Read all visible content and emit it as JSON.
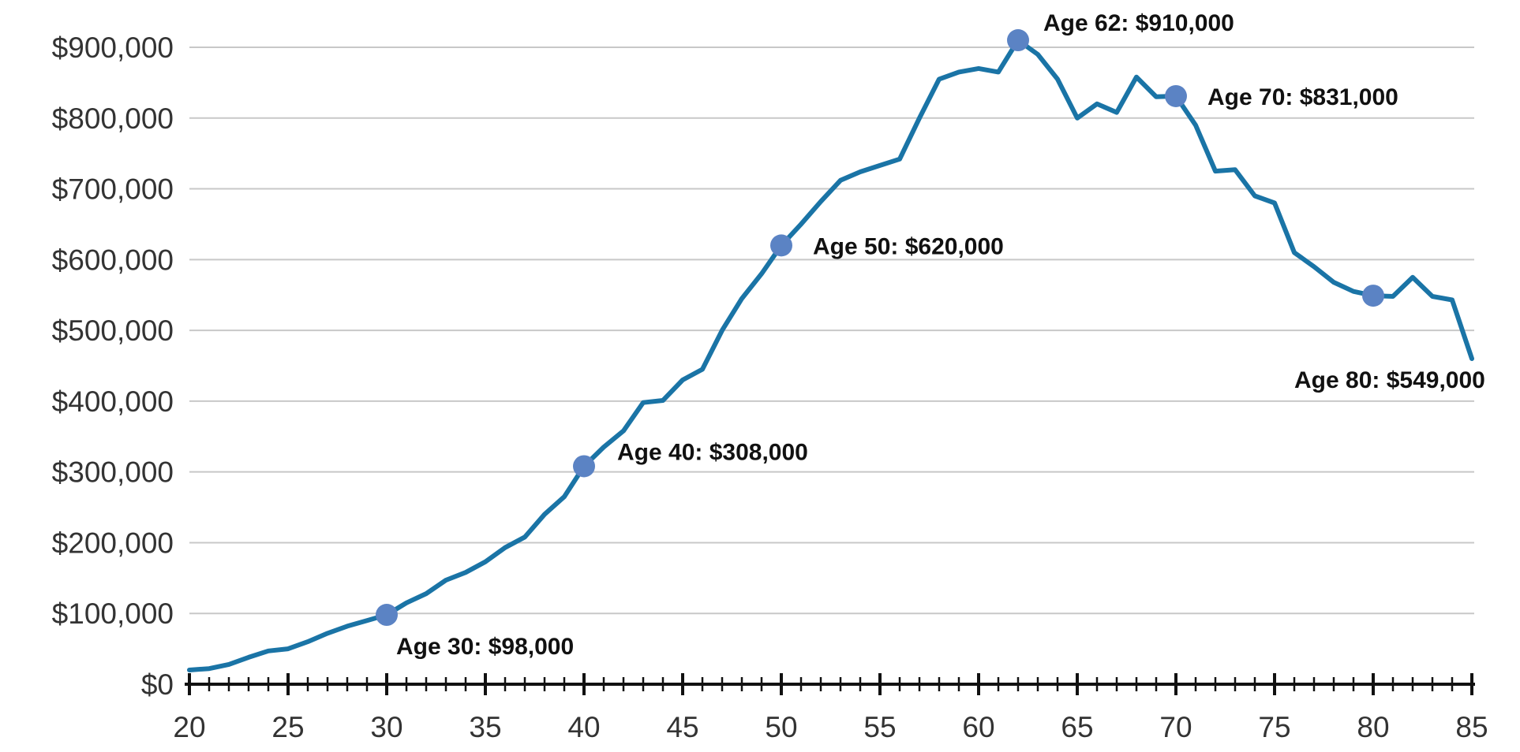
{
  "chart_data": {
    "type": "line",
    "title": "",
    "xlabel": "",
    "ylabel": "",
    "xlim": [
      20,
      85
    ],
    "ylim": [
      0,
      900000
    ],
    "x_ticks": [
      20,
      25,
      30,
      35,
      40,
      45,
      50,
      55,
      60,
      65,
      70,
      75,
      80,
      85
    ],
    "x_tick_labels": [
      "20",
      "25",
      "30",
      "35",
      "40",
      "45",
      "50",
      "55",
      "60",
      "65",
      "70",
      "75",
      "80",
      "85"
    ],
    "y_ticks": [
      0,
      100000,
      200000,
      300000,
      400000,
      500000,
      600000,
      700000,
      800000,
      900000
    ],
    "y_tick_labels": [
      "$0",
      "$100,000",
      "$200,000",
      "$300,000",
      "$400,000",
      "$500,000",
      "$600,000",
      "$700,000",
      "$800,000",
      "$900,000"
    ],
    "grid": true,
    "line_color": "#1a74a6",
    "marker_color": "#5b83c4",
    "series": [
      {
        "x": [
          20,
          21,
          22,
          23,
          24,
          25,
          26,
          27,
          28,
          29,
          30,
          31,
          32,
          33,
          34,
          35,
          36,
          37,
          38,
          39,
          40,
          41,
          42,
          43,
          44,
          45,
          46,
          47,
          48,
          49,
          50,
          51,
          52,
          53,
          54,
          55,
          56,
          57,
          58,
          59,
          60,
          61,
          62,
          63,
          64,
          65,
          66,
          67,
          68,
          69,
          70,
          71,
          72,
          73,
          74,
          75,
          76,
          77,
          78,
          79,
          80,
          81,
          82,
          83,
          84,
          85
        ],
        "y": [
          20000,
          22000,
          28000,
          38000,
          47000,
          50000,
          60000,
          72000,
          82000,
          90000,
          98000,
          115000,
          128000,
          147000,
          158000,
          173000,
          193000,
          208000,
          240000,
          265000,
          308000,
          335000,
          358000,
          398000,
          401000,
          430000,
          445000,
          500000,
          545000,
          580000,
          620000,
          650000,
          682000,
          712000,
          724000,
          733000,
          742000,
          800000,
          855000,
          865000,
          870000,
          865000,
          910000,
          890000,
          855000,
          800000,
          820000,
          808000,
          858000,
          830000,
          831000,
          790000,
          725000,
          727000,
          690000,
          680000,
          610000,
          590000,
          568000,
          555000,
          549000,
          548000,
          575000,
          548000,
          543000,
          460000
        ]
      }
    ],
    "annotations": [
      {
        "x": 30,
        "y": 98000,
        "label": "Age 30: $98,000",
        "placement": "below-right"
      },
      {
        "x": 40,
        "y": 308000,
        "label": "Age 40: $308,000",
        "placement": "right"
      },
      {
        "x": 50,
        "y": 620000,
        "label": "Age 50: $620,000",
        "placement": "right"
      },
      {
        "x": 62,
        "y": 910000,
        "label": "Age 62: $910,000",
        "placement": "above-right"
      },
      {
        "x": 70,
        "y": 831000,
        "label": "Age 70: $831,000",
        "placement": "right"
      },
      {
        "x": 80,
        "y": 549000,
        "label": "Age 80: $549,000",
        "placement": "below-right"
      }
    ]
  }
}
